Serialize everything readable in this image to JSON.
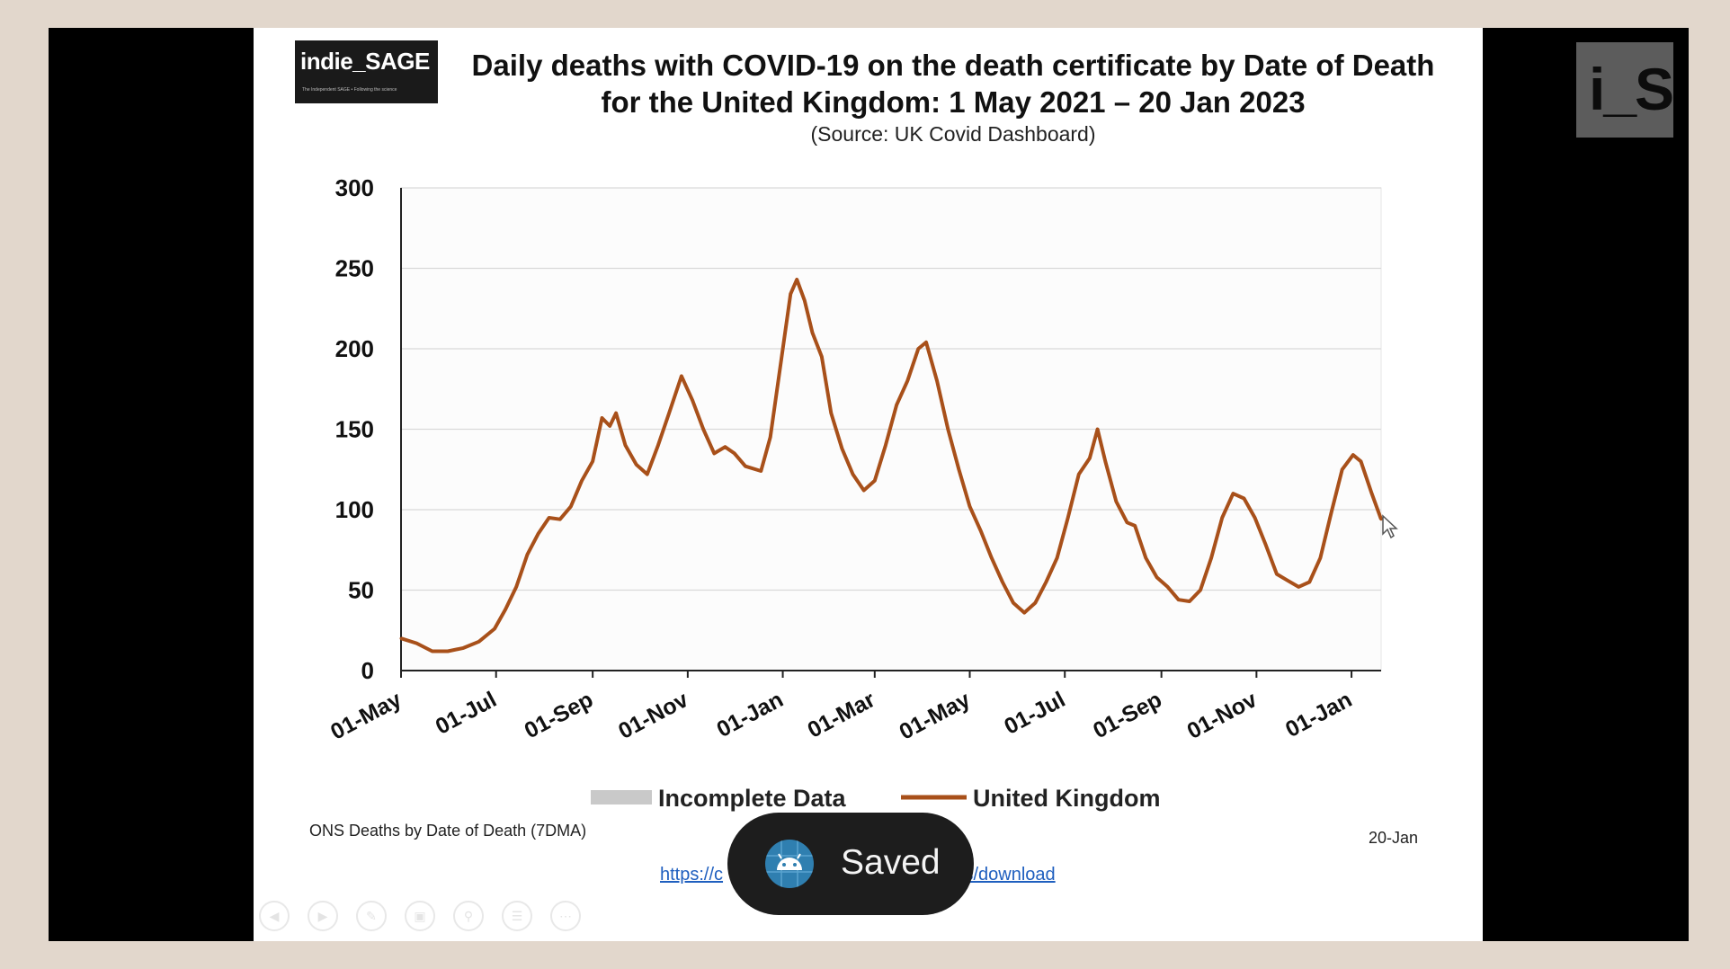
{
  "slide": {
    "logo_text": "indie_SAGE",
    "logo_subtext": "The Independent SAGE • Following the science",
    "title_line1": "Daily deaths with COVID-19 on the death certificate by Date of Death",
    "title_line2": "for the United Kingdom:  1 May 2021 – 20 Jan 2023",
    "source": "(Source: UK Covid Dashboard)",
    "footer_left": "ONS Deaths by Date of Death (7DMA)",
    "footer_right": "20-Jan",
    "link_start": "https://c",
    "link_end": "is/download"
  },
  "corner_logo": {
    "text": "i_S"
  },
  "toast": {
    "label": "Saved",
    "icon": "android-icon"
  },
  "colors": {
    "line": "#a8501a",
    "incomplete": "#c9c9c9",
    "grid": "#d9d9d9",
    "toast_bg": "#1d1d1d"
  },
  "toolbar": {
    "icons": [
      "prev-icon",
      "next-icon",
      "pen-icon",
      "slides-icon",
      "zoom-icon",
      "menu-icon",
      "more-icon"
    ]
  },
  "chart_data": {
    "type": "line",
    "title": "Daily deaths with COVID-19 on the death certificate by Date of Death for the United Kingdom:  1 May 2021 – 20 Jan 2023",
    "xlabel": "",
    "ylabel": "",
    "ylim": [
      0,
      300
    ],
    "yticks": [
      0,
      50,
      100,
      150,
      200,
      250,
      300
    ],
    "xlim": [
      "2021-05-01",
      "2023-01-20"
    ],
    "xticks": [
      {
        "date": "2021-05-01",
        "label": "01-May"
      },
      {
        "date": "2021-07-01",
        "label": "01-Jul"
      },
      {
        "date": "2021-09-01",
        "label": "01-Sep"
      },
      {
        "date": "2021-11-01",
        "label": "01-Nov"
      },
      {
        "date": "2022-01-01",
        "label": "01-Jan"
      },
      {
        "date": "2022-03-01",
        "label": "01-Mar"
      },
      {
        "date": "2022-05-01",
        "label": "01-May"
      },
      {
        "date": "2022-07-01",
        "label": "01-Jul"
      },
      {
        "date": "2022-09-01",
        "label": "01-Sep"
      },
      {
        "date": "2022-11-01",
        "label": "01-Nov"
      },
      {
        "date": "2023-01-01",
        "label": "01-Jan"
      }
    ],
    "grid": true,
    "legend": [
      {
        "name": "Incomplete Data",
        "color": "#c9c9c9",
        "style": "band"
      },
      {
        "name": "United Kingdom",
        "color": "#a8501a",
        "style": "line"
      }
    ],
    "legend_position": "bottom",
    "series": [
      {
        "name": "United Kingdom",
        "points": [
          {
            "x": "2021-05-01",
            "y": 20
          },
          {
            "x": "2021-05-11",
            "y": 17
          },
          {
            "x": "2021-05-21",
            "y": 12
          },
          {
            "x": "2021-05-31",
            "y": 12
          },
          {
            "x": "2021-06-10",
            "y": 14
          },
          {
            "x": "2021-06-20",
            "y": 18
          },
          {
            "x": "2021-06-30",
            "y": 26
          },
          {
            "x": "2021-07-07",
            "y": 38
          },
          {
            "x": "2021-07-14",
            "y": 52
          },
          {
            "x": "2021-07-21",
            "y": 72
          },
          {
            "x": "2021-07-28",
            "y": 85
          },
          {
            "x": "2021-08-04",
            "y": 95
          },
          {
            "x": "2021-08-11",
            "y": 94
          },
          {
            "x": "2021-08-18",
            "y": 102
          },
          {
            "x": "2021-08-25",
            "y": 118
          },
          {
            "x": "2021-09-01",
            "y": 130
          },
          {
            "x": "2021-09-07",
            "y": 157
          },
          {
            "x": "2021-09-12",
            "y": 152
          },
          {
            "x": "2021-09-16",
            "y": 160
          },
          {
            "x": "2021-09-22",
            "y": 140
          },
          {
            "x": "2021-09-29",
            "y": 128
          },
          {
            "x": "2021-10-06",
            "y": 122
          },
          {
            "x": "2021-10-13",
            "y": 140
          },
          {
            "x": "2021-10-20",
            "y": 160
          },
          {
            "x": "2021-10-28",
            "y": 183
          },
          {
            "x": "2021-11-04",
            "y": 168
          },
          {
            "x": "2021-11-11",
            "y": 150
          },
          {
            "x": "2021-11-18",
            "y": 135
          },
          {
            "x": "2021-11-25",
            "y": 139
          },
          {
            "x": "2021-12-01",
            "y": 135
          },
          {
            "x": "2021-12-08",
            "y": 127
          },
          {
            "x": "2021-12-18",
            "y": 124
          },
          {
            "x": "2021-12-24",
            "y": 145
          },
          {
            "x": "2022-01-01",
            "y": 200
          },
          {
            "x": "2022-01-06",
            "y": 234
          },
          {
            "x": "2022-01-10",
            "y": 243
          },
          {
            "x": "2022-01-15",
            "y": 230
          },
          {
            "x": "2022-01-20",
            "y": 210
          },
          {
            "x": "2022-01-26",
            "y": 195
          },
          {
            "x": "2022-02-01",
            "y": 160
          },
          {
            "x": "2022-02-08",
            "y": 138
          },
          {
            "x": "2022-02-15",
            "y": 122
          },
          {
            "x": "2022-02-22",
            "y": 112
          },
          {
            "x": "2022-03-01",
            "y": 118
          },
          {
            "x": "2022-03-08",
            "y": 140
          },
          {
            "x": "2022-03-15",
            "y": 165
          },
          {
            "x": "2022-03-22",
            "y": 180
          },
          {
            "x": "2022-03-29",
            "y": 200
          },
          {
            "x": "2022-04-03",
            "y": 204
          },
          {
            "x": "2022-04-10",
            "y": 180
          },
          {
            "x": "2022-04-17",
            "y": 150
          },
          {
            "x": "2022-04-24",
            "y": 125
          },
          {
            "x": "2022-05-01",
            "y": 102
          },
          {
            "x": "2022-05-08",
            "y": 87
          },
          {
            "x": "2022-05-15",
            "y": 70
          },
          {
            "x": "2022-05-22",
            "y": 55
          },
          {
            "x": "2022-05-29",
            "y": 42
          },
          {
            "x": "2022-06-05",
            "y": 36
          },
          {
            "x": "2022-06-12",
            "y": 42
          },
          {
            "x": "2022-06-19",
            "y": 55
          },
          {
            "x": "2022-06-26",
            "y": 70
          },
          {
            "x": "2022-07-03",
            "y": 95
          },
          {
            "x": "2022-07-10",
            "y": 122
          },
          {
            "x": "2022-07-17",
            "y": 132
          },
          {
            "x": "2022-07-22",
            "y": 150
          },
          {
            "x": "2022-07-27",
            "y": 130
          },
          {
            "x": "2022-08-03",
            "y": 105
          },
          {
            "x": "2022-08-10",
            "y": 92
          },
          {
            "x": "2022-08-15",
            "y": 90
          },
          {
            "x": "2022-08-22",
            "y": 70
          },
          {
            "x": "2022-08-29",
            "y": 58
          },
          {
            "x": "2022-09-05",
            "y": 52
          },
          {
            "x": "2022-09-12",
            "y": 44
          },
          {
            "x": "2022-09-19",
            "y": 43
          },
          {
            "x": "2022-09-26",
            "y": 50
          },
          {
            "x": "2022-10-03",
            "y": 70
          },
          {
            "x": "2022-10-10",
            "y": 95
          },
          {
            "x": "2022-10-17",
            "y": 110
          },
          {
            "x": "2022-10-24",
            "y": 107
          },
          {
            "x": "2022-10-31",
            "y": 95
          },
          {
            "x": "2022-11-07",
            "y": 78
          },
          {
            "x": "2022-11-14",
            "y": 60
          },
          {
            "x": "2022-11-21",
            "y": 56
          },
          {
            "x": "2022-11-28",
            "y": 52
          },
          {
            "x": "2022-12-05",
            "y": 55
          },
          {
            "x": "2022-12-12",
            "y": 70
          },
          {
            "x": "2022-12-19",
            "y": 98
          },
          {
            "x": "2022-12-26",
            "y": 125
          },
          {
            "x": "2023-01-02",
            "y": 134
          },
          {
            "x": "2023-01-07",
            "y": 130
          },
          {
            "x": "2023-01-14",
            "y": 110
          },
          {
            "x": "2023-01-20",
            "y": 94
          }
        ]
      }
    ]
  }
}
